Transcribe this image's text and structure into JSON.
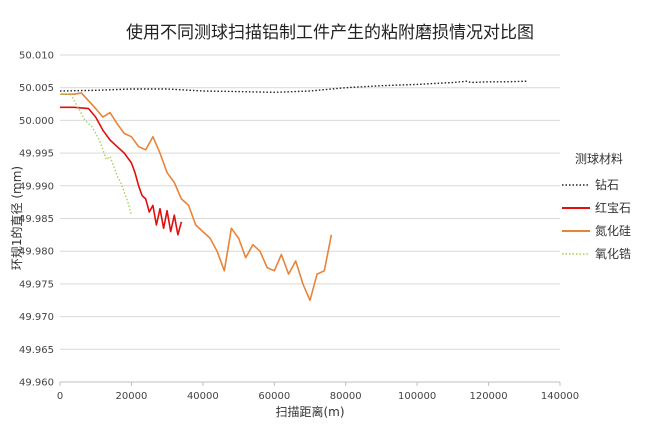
{
  "chart_data": {
    "type": "line",
    "title": "使用不同测球扫描铝制工件产生的粘附磨损情况对比图",
    "xlabel": "扫描距离(m)",
    "ylabel": "环规1的直径 (mm)",
    "xlim": [
      0,
      140000
    ],
    "ylim": [
      49.96,
      50.01
    ],
    "x_ticks": [
      0,
      20000,
      40000,
      60000,
      80000,
      100000,
      120000,
      140000
    ],
    "x_tick_labels": [
      "0",
      "20000",
      "40000",
      "60000",
      "80000",
      "100000",
      "120000",
      "140000"
    ],
    "y_ticks": [
      49.96,
      49.965,
      49.97,
      49.975,
      49.98,
      49.985,
      49.99,
      49.995,
      50.0,
      50.005,
      50.01
    ],
    "y_tick_labels": [
      "49.960",
      "49.965",
      "49.970",
      "49.975",
      "49.980",
      "49.985",
      "49.990",
      "49.995",
      "50.000",
      "50.005",
      "50.010"
    ],
    "grid": "horizontal",
    "legend": {
      "title": "测球材料",
      "position": "right"
    },
    "series": [
      {
        "name": "钻石",
        "color": "#222222",
        "style": "dotted",
        "x": [
          0,
          10000,
          20000,
          30000,
          40000,
          50000,
          60000,
          70000,
          80000,
          90000,
          100000,
          110000,
          114000,
          115000,
          120000,
          125000,
          131000
        ],
        "y": [
          50.0045,
          50.0046,
          50.0048,
          50.0048,
          50.0045,
          50.0044,
          50.0043,
          50.0045,
          50.005,
          50.0053,
          50.0055,
          50.0058,
          50.006,
          50.0058,
          50.0059,
          50.0059,
          50.006
        ]
      },
      {
        "name": "红宝石",
        "color": "#e01010",
        "style": "solid",
        "x": [
          0,
          4000,
          8000,
          10000,
          12000,
          14000,
          16000,
          18000,
          20000,
          21000,
          22000,
          23000,
          24000,
          25000,
          26000,
          27000,
          28000,
          29000,
          30000,
          31000,
          32000,
          33000,
          34000
        ],
        "y": [
          50.002,
          50.002,
          50.0018,
          50.0005,
          49.9985,
          49.997,
          49.996,
          49.995,
          49.9935,
          49.992,
          49.99,
          49.9885,
          49.988,
          49.986,
          49.987,
          49.984,
          49.9865,
          49.9835,
          49.9862,
          49.983,
          49.9855,
          49.9825,
          49.9845
        ]
      },
      {
        "name": "氮化硅",
        "color": "#e8843a",
        "style": "solid",
        "x": [
          0,
          4000,
          6000,
          8000,
          10000,
          12000,
          14000,
          16000,
          18000,
          20000,
          22000,
          24000,
          26000,
          28000,
          30000,
          32000,
          34000,
          36000,
          38000,
          40000,
          42000,
          44000,
          46000,
          48000,
          50000,
          52000,
          54000,
          56000,
          58000,
          60000,
          62000,
          64000,
          66000,
          68000,
          70000,
          72000,
          74000,
          76000
        ],
        "y": [
          50.004,
          50.004,
          50.0042,
          50.003,
          50.0018,
          50.0005,
          50.0012,
          49.9995,
          49.998,
          49.9975,
          49.996,
          49.9955,
          49.9975,
          49.995,
          49.992,
          49.9905,
          49.988,
          49.987,
          49.984,
          49.983,
          49.982,
          49.98,
          49.977,
          49.9835,
          49.982,
          49.979,
          49.981,
          49.98,
          49.9775,
          49.977,
          49.9795,
          49.9765,
          49.9785,
          49.975,
          49.9725,
          49.9765,
          49.977,
          49.9825
        ]
      },
      {
        "name": "氧化锆",
        "color": "#a6d15a",
        "style": "dotted",
        "x": [
          0,
          3000,
          5000,
          7000,
          9000,
          11000,
          12000,
          13000,
          14000,
          15000,
          16000,
          17000,
          18000,
          19000,
          20000
        ],
        "y": [
          50.004,
          50.004,
          50.002,
          50.0,
          49.999,
          49.997,
          49.9955,
          49.994,
          49.9945,
          49.993,
          49.9915,
          49.9905,
          49.989,
          49.9875,
          49.9855
        ]
      }
    ]
  }
}
